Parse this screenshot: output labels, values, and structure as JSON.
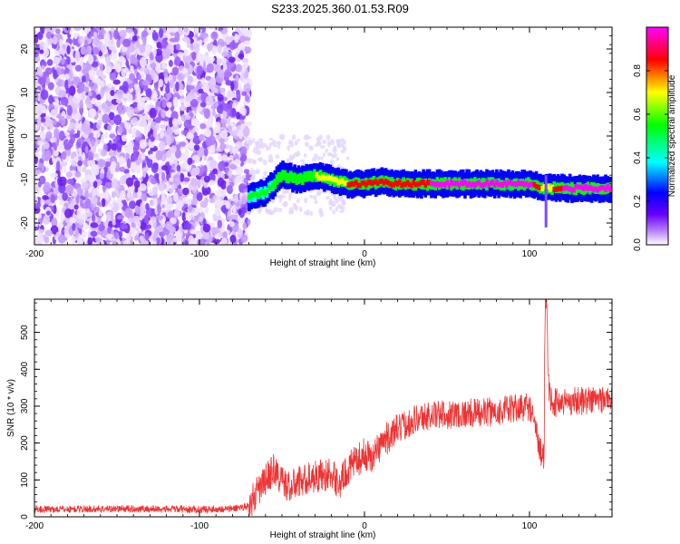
{
  "title": "S233.2025.360.01.53.R09",
  "chart_data": [
    {
      "type": "heatmap",
      "xlabel": "Height of straight line (km)",
      "ylabel": "Frequency (Hz)",
      "xlim": [
        -200,
        150
      ],
      "ylim": [
        -25,
        25
      ],
      "x_ticks": [
        -200,
        -100,
        0,
        100
      ],
      "x_tick_labels": [
        "-200",
        "-100",
        "0",
        "100"
      ],
      "y_ticks": [
        -20,
        -10,
        0,
        10,
        20
      ],
      "y_tick_labels": [
        "-20",
        "-10",
        "0",
        "10",
        "20"
      ],
      "noise_region_x": [
        -200,
        -70
      ],
      "ridge": {
        "x": [
          -70,
          -60,
          -50,
          -40,
          -30,
          -20,
          -10,
          0,
          10,
          20,
          40,
          60,
          80,
          100,
          110,
          120,
          150
        ],
        "frequency": [
          -14,
          -13,
          -9,
          -10,
          -9,
          -10,
          -11,
          -11,
          -10.5,
          -11,
          -11,
          -11,
          -11,
          -11,
          -12,
          -12,
          -12
        ],
        "amplitude": [
          0.25,
          0.3,
          0.45,
          0.45,
          0.55,
          0.6,
          0.7,
          0.75,
          0.8,
          0.85,
          0.85,
          0.9,
          0.9,
          0.9,
          0.6,
          0.85,
          0.9
        ]
      },
      "grid": false
    },
    {
      "type": "colorbar",
      "label": "Normalized spectral amplitude",
      "range": [
        0,
        1
      ],
      "ticks": [
        0.0,
        0.2,
        0.4,
        0.6,
        0.8
      ],
      "tick_labels": [
        "0.0",
        "0.2",
        "0.4",
        "0.6",
        "0.8"
      ],
      "colormap": [
        "#ffffff",
        "#8800ff",
        "#0000ff",
        "#00ffff",
        "#00ff00",
        "#ffff00",
        "#ff0000",
        "#ff00ff"
      ]
    },
    {
      "type": "line",
      "xlabel": "Height of straight line (km)",
      "ylabel": "SNR (10 * v/v)",
      "xlim": [
        -200,
        150
      ],
      "ylim": [
        0,
        590
      ],
      "x_ticks": [
        -200,
        -100,
        0,
        100
      ],
      "x_tick_labels": [
        "-200",
        "-100",
        "0",
        "100"
      ],
      "y_ticks": [
        0,
        100,
        200,
        300,
        400,
        500
      ],
      "y_tick_labels": [
        "0",
        "100",
        "200",
        "300",
        "400",
        "500"
      ],
      "series_color": "#ee3333",
      "x": [
        -200,
        -150,
        -100,
        -80,
        -70,
        -60,
        -55,
        -50,
        -45,
        -40,
        -30,
        -20,
        -15,
        -10,
        0,
        5,
        10,
        20,
        30,
        40,
        60,
        80,
        100,
        108,
        110,
        112,
        115,
        130,
        150
      ],
      "y": [
        20,
        22,
        20,
        22,
        30,
        100,
        130,
        95,
        80,
        95,
        110,
        115,
        90,
        130,
        170,
        160,
        200,
        235,
        265,
        275,
        280,
        285,
        300,
        160,
        590,
        330,
        310,
        315,
        320
      ],
      "grid": false
    }
  ]
}
